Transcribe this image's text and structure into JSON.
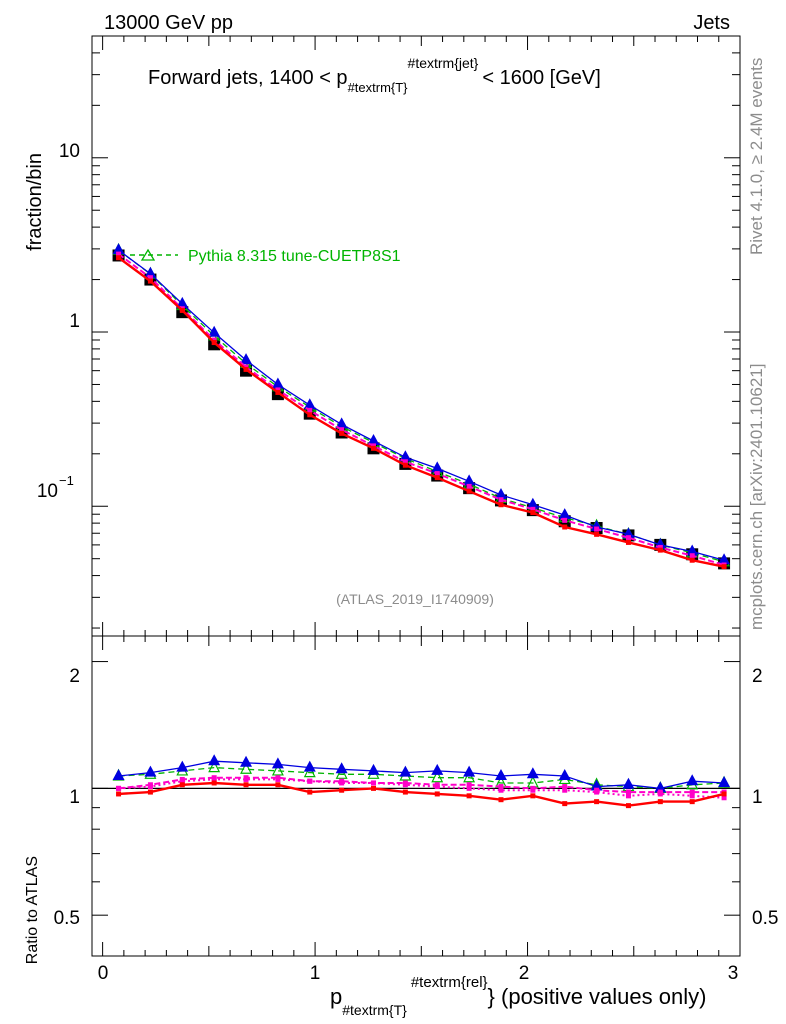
{
  "header": {
    "left": "13000 GeV pp",
    "right": "Jets"
  },
  "side": {
    "rivet": "Rivet 4.1.0, ≥ 2.4M events",
    "mcplots": "mcplots.cern.ch [arXiv:2401.10621]"
  },
  "main_plot": {
    "title_prefix": "Forward jets, 1400 < p",
    "title_sub": "#textrm{T}",
    "title_sup": "#textrm{jet}",
    "title_suffix": "< 1600 [GeV]",
    "ylabel": "fraction/bin",
    "analysis": "(ATLAS_2019_I1740909)",
    "legend_label": "Pythia 8.315 tune-CUETP8S1",
    "ytick_labels": {
      "10": "10",
      "1": "1",
      "0.1_base": "10",
      "0.1_exp": "−1"
    }
  },
  "ratio_plot": {
    "ylabel": "Ratio to ATLAS",
    "ytick_labels": [
      "2",
      "1",
      "0.5"
    ]
  },
  "xaxis": {
    "label_main": "p",
    "label_sub": "#textrm{T}",
    "label_sup": "#textrm{rel}",
    "label_suffix": "} (positive values only)",
    "tick_labels": [
      "0",
      "1",
      "2",
      "3"
    ]
  },
  "chart_data": {
    "type": "line",
    "x": [
      0.075,
      0.225,
      0.375,
      0.525,
      0.675,
      0.825,
      0.975,
      1.125,
      1.275,
      1.425,
      1.575,
      1.725,
      1.875,
      2.025,
      2.175,
      2.325,
      2.475,
      2.625,
      2.775,
      2.925
    ],
    "xlim": [
      -0.05,
      3.0
    ],
    "ylim": [
      0.018,
      50
    ],
    "yscale": "log",
    "ratio_ylim": [
      0.4,
      2.3
    ],
    "data": {
      "name": "ATLAS",
      "values": [
        2.75,
        2.0,
        1.3,
        0.85,
        0.6,
        0.44,
        0.34,
        0.265,
        0.215,
        0.175,
        0.15,
        0.127,
        0.108,
        0.095,
        0.082,
        0.075,
        0.068,
        0.06,
        0.053,
        0.047
      ],
      "color": "#000000"
    },
    "series": [
      {
        "name": "Pythia 8.315 tune-CUETP8S1",
        "color": "#00b400",
        "values": [
          2.95,
          2.15,
          1.42,
          0.95,
          0.66,
          0.485,
          0.37,
          0.287,
          0.232,
          0.188,
          0.158,
          0.134,
          0.111,
          0.098,
          0.086,
          0.077,
          0.069,
          0.06,
          0.054,
          0.048
        ]
      },
      {
        "name": "blue",
        "color": "#0000e0",
        "values": [
          2.95,
          2.16,
          1.45,
          0.99,
          0.69,
          0.5,
          0.38,
          0.295,
          0.237,
          0.191,
          0.165,
          0.139,
          0.116,
          0.102,
          0.089,
          0.076,
          0.069,
          0.06,
          0.055,
          0.049
        ]
      },
      {
        "name": "magenta",
        "color": "#ff00c8",
        "values": [
          2.8,
          2.05,
          1.36,
          0.9,
          0.63,
          0.465,
          0.355,
          0.275,
          0.222,
          0.18,
          0.154,
          0.13,
          0.109,
          0.096,
          0.083,
          0.074,
          0.066,
          0.058,
          0.052,
          0.046
        ]
      },
      {
        "name": "red",
        "color": "#ff0000",
        "values": [
          2.67,
          1.96,
          1.33,
          0.87,
          0.61,
          0.45,
          0.335,
          0.262,
          0.215,
          0.172,
          0.146,
          0.122,
          0.102,
          0.092,
          0.076,
          0.069,
          0.062,
          0.056,
          0.049,
          0.045
        ]
      }
    ],
    "ratios": [
      {
        "name": "Pythia 8.315 tune-CUETP8S1",
        "color": "#00b400",
        "values": [
          1.07,
          1.08,
          1.1,
          1.12,
          1.11,
          1.1,
          1.09,
          1.08,
          1.08,
          1.07,
          1.06,
          1.06,
          1.03,
          1.03,
          1.05,
          1.02,
          1.01,
          1.0,
          1.02,
          1.03
        ]
      },
      {
        "name": "blue",
        "color": "#0000e0",
        "values": [
          1.07,
          1.09,
          1.12,
          1.16,
          1.15,
          1.14,
          1.12,
          1.11,
          1.1,
          1.09,
          1.1,
          1.09,
          1.07,
          1.08,
          1.07,
          1.01,
          1.02,
          1.0,
          1.04,
          1.03
        ]
      },
      {
        "name": "magenta",
        "color": "#ff00c8",
        "values": [
          1.0,
          1.02,
          1.05,
          1.06,
          1.06,
          1.06,
          1.04,
          1.04,
          1.03,
          1.03,
          1.02,
          1.02,
          1.01,
          1.0,
          1.01,
          0.99,
          0.98,
          0.98,
          0.98,
          0.98
        ]
      },
      {
        "name": "magenta-dotted",
        "color": "#ff00c8",
        "values": [
          1.0,
          1.01,
          1.04,
          1.05,
          1.05,
          1.05,
          1.04,
          1.03,
          1.03,
          1.02,
          1.01,
          1.0,
          0.99,
          0.99,
          0.99,
          0.98,
          0.96,
          0.97,
          0.96,
          0.95
        ]
      },
      {
        "name": "red",
        "color": "#ff0000",
        "values": [
          0.97,
          0.98,
          1.02,
          1.03,
          1.02,
          1.02,
          0.98,
          0.99,
          1.0,
          0.98,
          0.97,
          0.96,
          0.94,
          0.96,
          0.92,
          0.93,
          0.91,
          0.93,
          0.93,
          0.97
        ]
      }
    ]
  }
}
